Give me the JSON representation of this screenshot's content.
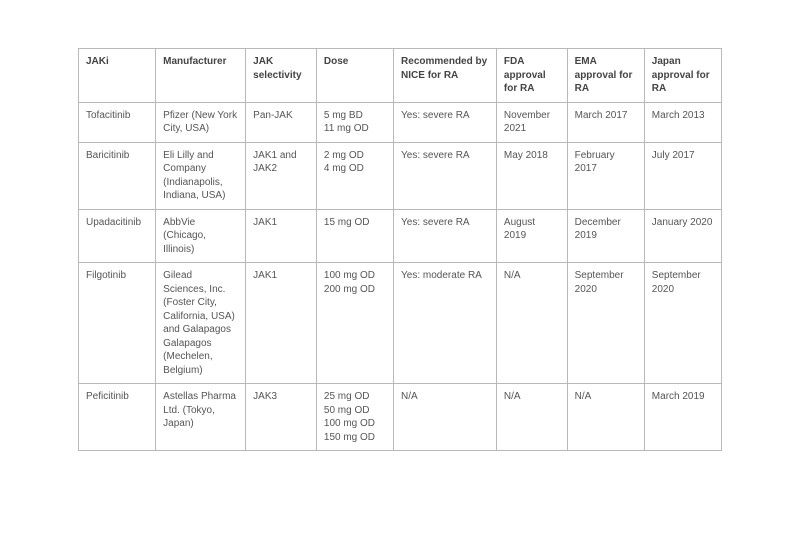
{
  "table": {
    "type": "table",
    "border_color": "#b8b8b8",
    "background_color": "#ffffff",
    "text_color": "#555555",
    "header_text_color": "#444444",
    "font_size_pt": 8,
    "columns": [
      {
        "label": "JAKi",
        "width_pct": 12
      },
      {
        "label": "Manufacturer",
        "width_pct": 14
      },
      {
        "label": "JAK selectivity",
        "width_pct": 11
      },
      {
        "label": "Dose",
        "width_pct": 12
      },
      {
        "label": "Recommended by NICE for RA",
        "width_pct": 16
      },
      {
        "label": "FDA approval for RA",
        "width_pct": 11
      },
      {
        "label": "EMA approval for RA",
        "width_pct": 12
      },
      {
        "label": "Japan approval for RA",
        "width_pct": 12
      }
    ],
    "rows": [
      {
        "name": "Tofacitinib",
        "manufacturer": "Pfizer (New York City, USA)",
        "selectivity": "Pan-JAK",
        "dose": "5 mg BD\n11 mg OD",
        "nice": "Yes: severe RA",
        "fda": "November 2021",
        "ema": "March 2017",
        "japan": "March 2013"
      },
      {
        "name": "Baricitinib",
        "manufacturer": "Eli Lilly and Company (Indianapolis, Indiana, USA)",
        "selectivity": "JAK1 and JAK2",
        "dose": "2 mg OD\n4 mg OD",
        "nice": "Yes: severe RA",
        "fda": "May 2018",
        "ema": "February 2017",
        "japan": "July 2017"
      },
      {
        "name": "Upadacitinib",
        "manufacturer": "AbbVie (Chicago, Illinois)",
        "selectivity": "JAK1",
        "dose": "15 mg OD",
        "nice": "Yes: severe RA",
        "fda": "August 2019",
        "ema": "December 2019",
        "japan": "January 2020"
      },
      {
        "name": "Filgotinib",
        "manufacturer": "Gilead Sciences, Inc. (Foster City, California, USA) and Galapagos Galapagos (Mechelen, Belgium)",
        "selectivity": "JAK1",
        "dose": "100 mg OD\n200 mg OD",
        "nice": "Yes: moderate RA",
        "fda": "N/A",
        "ema": "September 2020",
        "japan": "September 2020"
      },
      {
        "name": "Peficitinib",
        "manufacturer": "Astellas Pharma Ltd. (Tokyo, Japan)",
        "selectivity": "JAK3",
        "dose": "25 mg OD\n50 mg OD\n100 mg OD\n150 mg OD",
        "nice": "N/A",
        "fda": "N/A",
        "ema": "N/A",
        "japan": "March 2019"
      }
    ]
  }
}
